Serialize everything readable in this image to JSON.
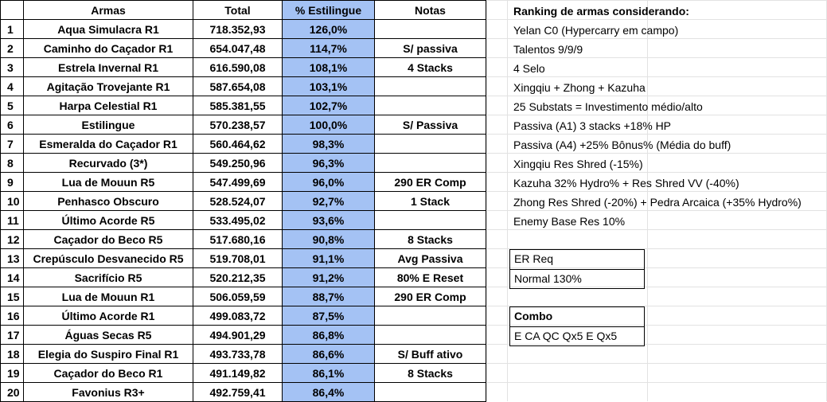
{
  "headers": {
    "index": "",
    "weapon": "Armas",
    "total": "Total",
    "percent": "% Estilingue",
    "notes": "Notas"
  },
  "rows": [
    {
      "n": "1",
      "weapon": "Aqua Simulacra R1",
      "total": "718.352,93",
      "percent": "126,0%",
      "notes": ""
    },
    {
      "n": "2",
      "weapon": "Caminho do Caçador R1",
      "total": "654.047,48",
      "percent": "114,7%",
      "notes": "S/ passiva"
    },
    {
      "n": "3",
      "weapon": "Estrela Invernal R1",
      "total": "616.590,08",
      "percent": "108,1%",
      "notes": "4 Stacks"
    },
    {
      "n": "4",
      "weapon": "Agitação Trovejante R1",
      "total": "587.654,08",
      "percent": "103,1%",
      "notes": ""
    },
    {
      "n": "5",
      "weapon": "Harpa Celestial R1",
      "total": "585.381,55",
      "percent": "102,7%",
      "notes": ""
    },
    {
      "n": "6",
      "weapon": "Estilingue",
      "total": "570.238,57",
      "percent": "100,0%",
      "notes": "S/ Passiva"
    },
    {
      "n": "7",
      "weapon": "Esmeralda do Caçador R1",
      "total": "560.464,62",
      "percent": "98,3%",
      "notes": ""
    },
    {
      "n": "8",
      "weapon": "Recurvado (3*)",
      "total": "549.250,96",
      "percent": "96,3%",
      "notes": ""
    },
    {
      "n": "9",
      "weapon": "Lua de Mouun R5",
      "total": "547.499,69",
      "percent": "96,0%",
      "notes": "290 ER Comp"
    },
    {
      "n": "10",
      "weapon": "Penhasco Obscuro",
      "total": "528.524,07",
      "percent": "92,7%",
      "notes": "1 Stack"
    },
    {
      "n": "11",
      "weapon": "Último Acorde R5",
      "total": "533.495,02",
      "percent": "93,6%",
      "notes": ""
    },
    {
      "n": "12",
      "weapon": "Caçador do Beco R5",
      "total": "517.680,16",
      "percent": "90,8%",
      "notes": "8 Stacks"
    },
    {
      "n": "13",
      "weapon": "Crepúsculo Desvanecido R5",
      "total": "519.708,01",
      "percent": "91,1%",
      "notes": "Avg Passiva"
    },
    {
      "n": "14",
      "weapon": "Sacrifício R5",
      "total": "520.212,35",
      "percent": "91,2%",
      "notes": "80% E Reset"
    },
    {
      "n": "15",
      "weapon": "Lua de Mouun R1",
      "total": "506.059,59",
      "percent": "88,7%",
      "notes": "290 ER Comp"
    },
    {
      "n": "16",
      "weapon": "Último Acorde R1",
      "total": "499.083,72",
      "percent": "87,5%",
      "notes": ""
    },
    {
      "n": "17",
      "weapon": "Águas Secas R5",
      "total": "494.901,29",
      "percent": "86,8%",
      "notes": ""
    },
    {
      "n": "18",
      "weapon": "Elegia do Suspiro Final R1",
      "total": "493.733,78",
      "percent": "86,6%",
      "notes": "S/ Buff ativo"
    },
    {
      "n": "19",
      "weapon": "Caçador do Beco R1",
      "total": "491.149,82",
      "percent": "86,1%",
      "notes": "8 Stacks"
    },
    {
      "n": "20",
      "weapon": "Favonius R3+",
      "total": "492.759,41",
      "percent": "86,4%",
      "notes": ""
    }
  ],
  "ranking": {
    "title": "Ranking de armas considerando:",
    "lines": [
      "Yelan C0 (Hypercarry em campo)",
      "Talentos 9/9/9",
      "4 Selo",
      "Xingqiu + Zhong + Kazuha",
      "25 Substats = Investimento médio/alto",
      "Passiva (A1) 3 stacks +18% HP",
      "Passiva (A4) +25% Bônus% (Média do buff)",
      "Xingqiu Res Shred (-15%)",
      "Kazuha 32% Hydro% + Res Shred VV (-40%)",
      "Zhong Res Shred (-20%) + Pedra Arcaica (+35% Hydro%)",
      "Enemy Base Res 10%"
    ]
  },
  "er_box": {
    "label": "ER Req",
    "value": "Normal 130%"
  },
  "combo_box": {
    "label": "Combo",
    "value": "E CA QC Qx5 E Qx5"
  },
  "colors": {
    "percent_column": "#a4c2f4",
    "gridline": "#e2e2e2",
    "border": "#000000"
  }
}
